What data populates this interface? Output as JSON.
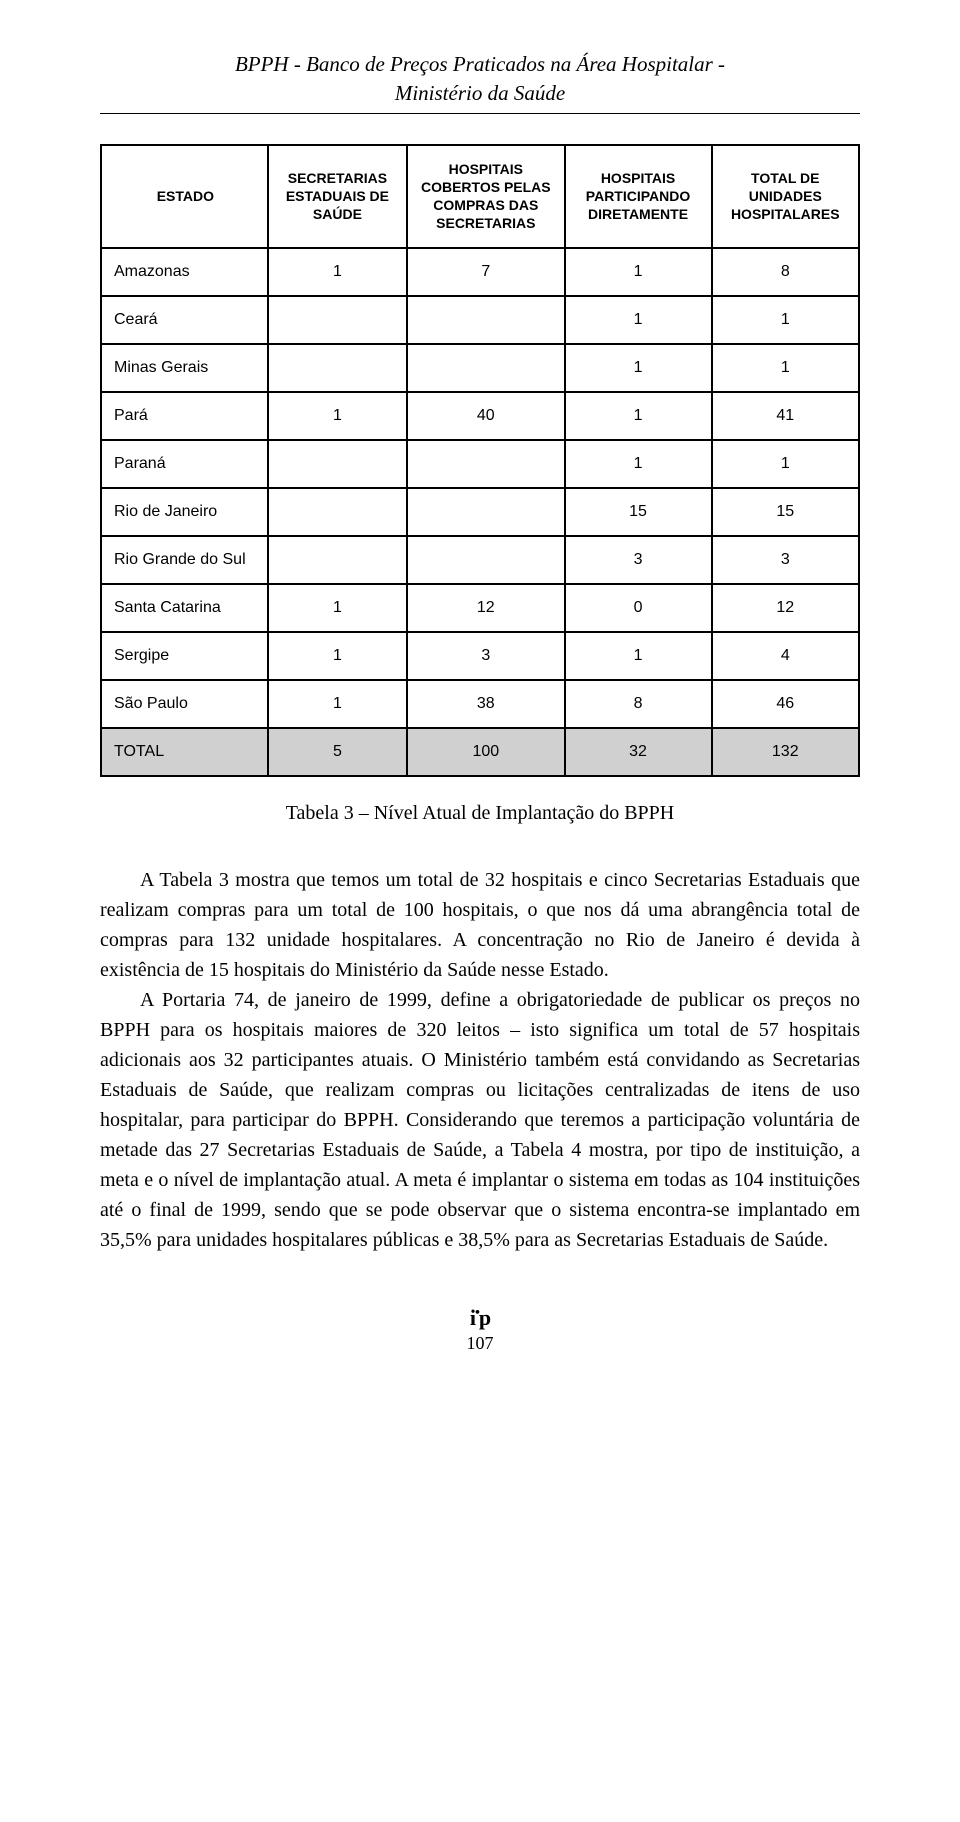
{
  "header": {
    "line1": "BPPH - Banco de Preços Praticados na Área Hospitalar -",
    "line2": "Ministério da Saúde"
  },
  "table": {
    "columns": [
      "ESTADO",
      "SECRETARIAS ESTADUAIS DE SAÚDE",
      "HOSPITAIS COBERTOS PELAS COMPRAS DAS SECRETARIAS",
      "HOSPITAIS PARTICIPANDO DIRETAMENTE",
      "TOTAL DE UNIDADES HOSPITALARES"
    ],
    "rows": [
      {
        "estado": "Amazonas",
        "c1": "1",
        "c2": "7",
        "c3": "1",
        "c4": "8"
      },
      {
        "estado": "Ceará",
        "c1": "",
        "c2": "",
        "c3": "1",
        "c4": "1"
      },
      {
        "estado": "Minas Gerais",
        "c1": "",
        "c2": "",
        "c3": "1",
        "c4": "1"
      },
      {
        "estado": "Pará",
        "c1": "1",
        "c2": "40",
        "c3": "1",
        "c4": "41"
      },
      {
        "estado": "Paraná",
        "c1": "",
        "c2": "",
        "c3": "1",
        "c4": "1"
      },
      {
        "estado": "Rio de Janeiro",
        "c1": "",
        "c2": "",
        "c3": "15",
        "c4": "15"
      },
      {
        "estado": "Rio Grande do Sul",
        "c1": "",
        "c2": "",
        "c3": "3",
        "c4": "3"
      },
      {
        "estado": "Santa Catarina",
        "c1": "1",
        "c2": "12",
        "c3": "0",
        "c4": "12"
      },
      {
        "estado": "Sergipe",
        "c1": "1",
        "c2": "3",
        "c3": "1",
        "c4": "4"
      },
      {
        "estado": "São Paulo",
        "c1": "1",
        "c2": "38",
        "c3": "8",
        "c4": "46"
      }
    ],
    "total": {
      "estado": "TOTAL",
      "c1": "5",
      "c2": "100",
      "c3": "32",
      "c4": "132"
    }
  },
  "caption": "Tabela 3 – Nível Atual de Implantação do BPPH",
  "paragraphs": {
    "p1": "A Tabela 3 mostra que temos um total de 32 hospitais e cinco Secretarias Estaduais que realizam compras para um total de 100 hospitais, o que nos dá uma abrangência total de compras para 132 unidade hospitalares. A concen­tração no Rio de Janeiro é devida à existência de 15 hospitais do Ministério da Saúde nesse Estado.",
    "p2": "A Portaria 74, de janeiro de 1999, define a obrigatoriedade de publicar os preços no BPPH para os hospitais maiores de 320 leitos – isto significa um total de 57 hospitais adicionais aos 32 participantes atuais. O Ministério tam­bém está convidando as Secretarias Estaduais de Saúde, que realizam com­pras ou licitações centralizadas de itens de uso hospitalar, para participar do BPPH. Considerando que teremos a participação voluntária de metade das 27 Secretarias Estaduais de Saúde, a Tabela 4 mostra, por tipo de instituição, a meta e o nível de implantação atual. A meta é implantar o sistema em todas as 104 instituições até o final de 1999, sendo que se pode observar que o sistema encontra-se implantado em 35,5% para unidades hospitalares públi­cas e 38,5% para as Secretarias Estaduais de Saúde."
  },
  "footer": {
    "page": "107"
  },
  "styling": {
    "background_color": "#ffffff",
    "text_color": "#000000",
    "total_row_bg": "#d0d0d0",
    "border_color": "#000000",
    "body_font": "Georgia, Times New Roman, serif",
    "table_font": "Arial, Helvetica, sans-serif",
    "title_fontsize": 21,
    "body_fontsize": 20,
    "table_fontsize": 16,
    "th_fontsize": 14
  }
}
